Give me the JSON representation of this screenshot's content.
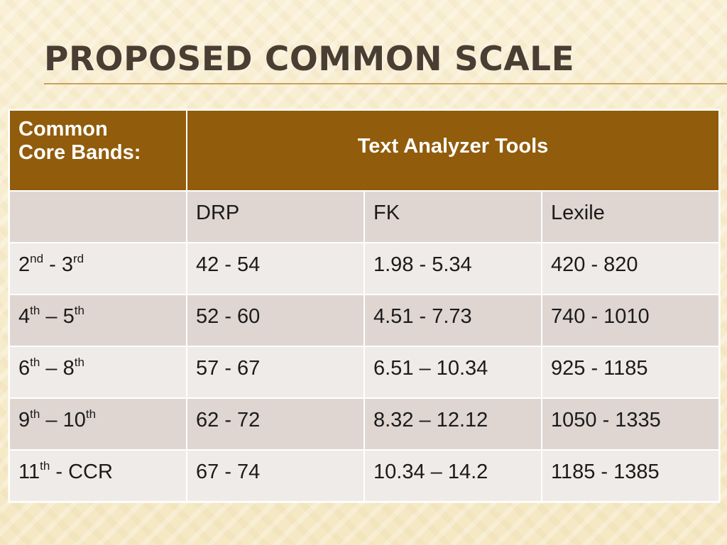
{
  "slide": {
    "title": "PROPOSED COMMON SCALE"
  },
  "table": {
    "header": {
      "bands_line1": "Common",
      "bands_line2": "Core Bands:",
      "tools": "Text Analyzer Tools"
    },
    "subheader": {
      "blank": "",
      "drp": "DRP",
      "fk": "FK",
      "lexile": "Lexile"
    },
    "rows": [
      {
        "band": {
          "n1": "2",
          "s1": "nd",
          "mid": " - ",
          "n2": "3",
          "s2": "rd"
        },
        "drp": "42 - 54",
        "fk": "1.98 - 5.34",
        "lexile": "420 - 820"
      },
      {
        "band": {
          "n1": "4",
          "s1": "th",
          "mid": " – ",
          "n2": "5",
          "s2": "th"
        },
        "drp": "52 - 60",
        "fk": "4.51 - 7.73",
        "lexile": "740 - 1010"
      },
      {
        "band": {
          "n1": "6",
          "s1": "th",
          "mid": " – ",
          "n2": "8",
          "s2": "th"
        },
        "drp": "57 - 67",
        "fk": "6.51 – 10.34",
        "lexile": "925 - 1185"
      },
      {
        "band": {
          "n1": "9",
          "s1": "th",
          "mid": " – ",
          "n2": "10",
          "s2": "th"
        },
        "drp": "62 - 72",
        "fk": "8.32 – 12.12",
        "lexile": "1050 - 1335"
      },
      {
        "band": {
          "n1": "11",
          "s1": "th",
          "mid": " - CCR",
          "n2": "",
          "s2": ""
        },
        "drp": "67 - 74",
        "fk": "10.34 – 14.2",
        "lexile": "1185 - 1385"
      }
    ]
  },
  "colors": {
    "header_fill": "#915c0b",
    "row_fill_dark": "#dfd5d1",
    "row_fill_light": "#efebe9",
    "title_text": "#4a3e33",
    "rule": "#c9a15a"
  }
}
